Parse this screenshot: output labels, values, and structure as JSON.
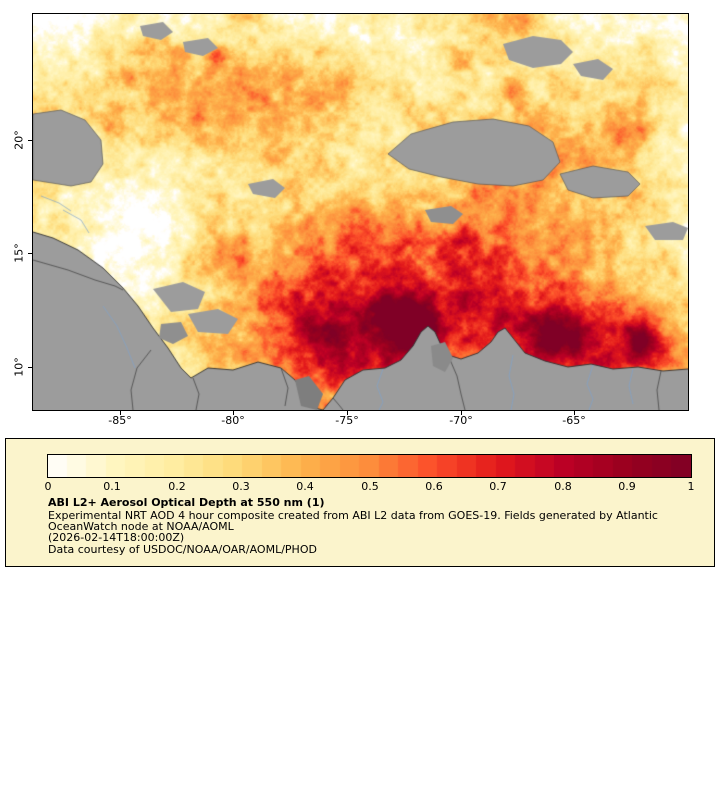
{
  "map": {
    "x_tick_labels": [
      "-85°",
      "-80°",
      "-75°",
      "-70°",
      "-65°"
    ],
    "y_tick_labels": [
      "20°",
      "15°",
      "10°"
    ],
    "nodata_color": "#9c9c9c"
  },
  "colorbar": {
    "min": 0,
    "max": 1,
    "tick_labels": [
      "0",
      "0.1",
      "0.2",
      "0.3",
      "0.4",
      "0.5",
      "0.6",
      "0.7",
      "0.8",
      "0.9",
      "1"
    ],
    "palette": [
      "#ffffff",
      "#fff7c3",
      "#ffeda0",
      "#fed976",
      "#feb24c",
      "#fd8d3c",
      "#fc4e2a",
      "#e31a1c",
      "#bd0026",
      "#99011f",
      "#800026"
    ]
  },
  "legend": {
    "title": "ABI L2+ Aerosol Optical Depth at 550 nm (1)",
    "description_line1": "Experimental NRT AOD 4 hour composite created from ABI L2 data from GOES-19. Fields generated by Atlantic",
    "description_line2": "OceanWatch node at NOAA/AOML",
    "timestamp": "(2026-02-14T18:00:00Z)",
    "credit": "Data courtesy of USDOC/NOAA/OAR/AOML/PHOD",
    "background": "#fbf4cc"
  },
  "chart_data": {
    "type": "heatmap",
    "title": "ABI L2+ Aerosol Optical Depth at 550 nm (1)",
    "product": "ABI L2+ Aerosol Optical Depth at 550 nm",
    "composite": "Experimental NRT AOD 4 hour composite",
    "satellite": "GOES-19",
    "time": "2026-02-14T18:00:00Z",
    "colorbar": {
      "range": [
        0,
        1
      ],
      "ticks": [
        0,
        0.1,
        0.2,
        0.3,
        0.4,
        0.5,
        0.6,
        0.7,
        0.8,
        0.9,
        1
      ]
    },
    "x_axis": {
      "unit": "degrees longitude",
      "ticks": [
        -85,
        -80,
        -75,
        -70,
        -65
      ]
    },
    "y_axis": {
      "unit": "degrees latitude",
      "ticks": [
        20,
        15,
        10
      ]
    },
    "nodata_color": "#9c9c9c"
  }
}
